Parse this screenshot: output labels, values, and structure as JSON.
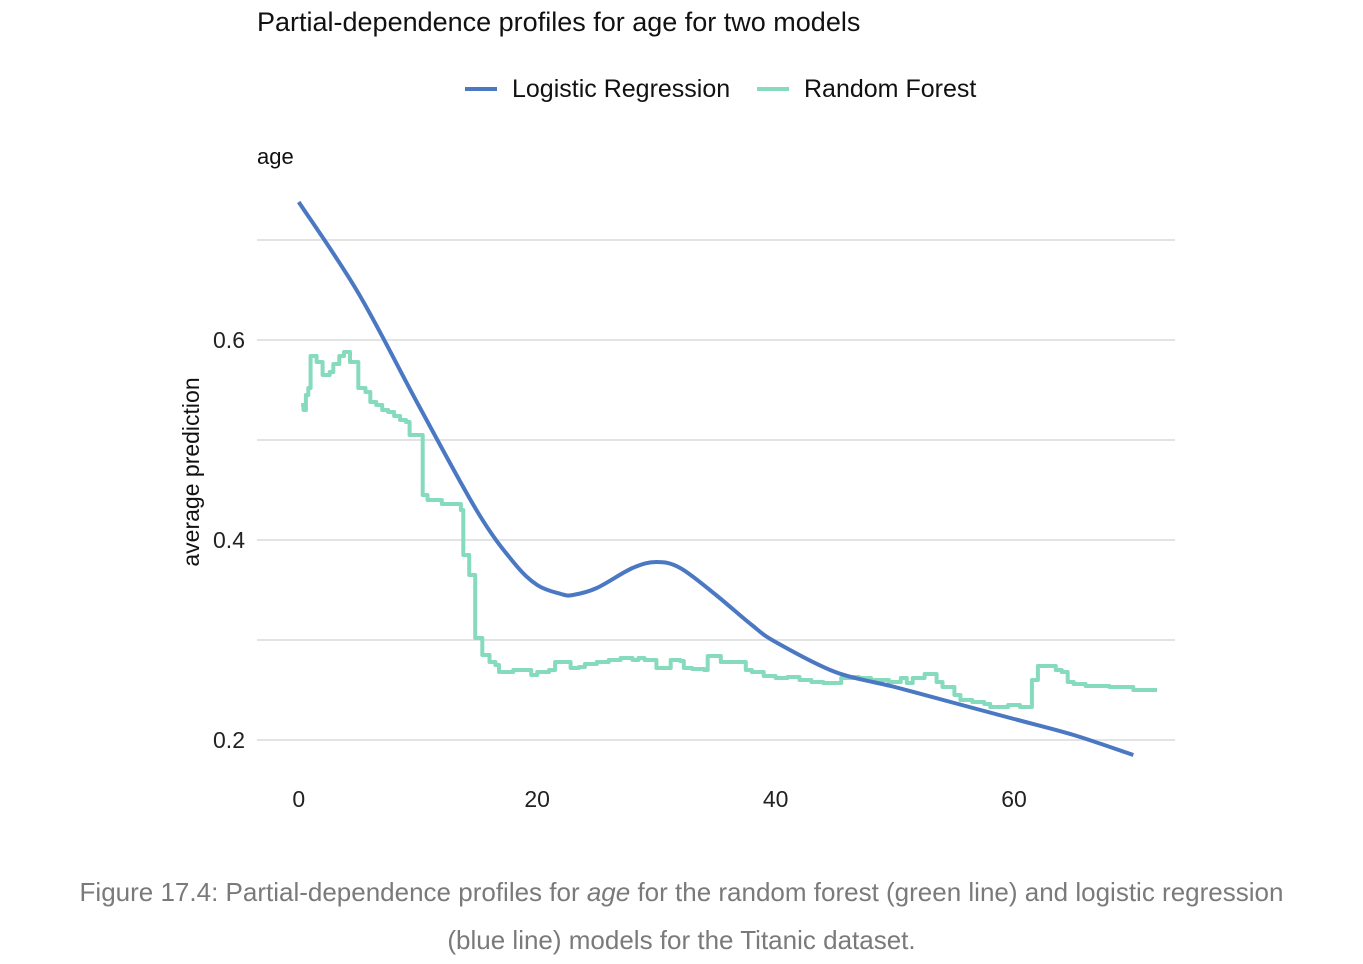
{
  "chart_data": {
    "type": "line",
    "title": "Partial-dependence profiles for age for two models",
    "facet_label": "age",
    "xlabel": "",
    "ylabel": "average prediction",
    "xlim": [
      -3.5,
      73.5
    ],
    "ylim": [
      0.17,
      0.77
    ],
    "x_ticks": [
      0,
      20,
      40,
      60
    ],
    "y_ticks": [
      0.2,
      0.4,
      0.6
    ],
    "y_gridlines": [
      0.2,
      0.3,
      0.4,
      0.5,
      0.6,
      0.7
    ],
    "grid": true,
    "legend_position": "top",
    "series": [
      {
        "name": "Logistic Regression",
        "color": "#4a78c2",
        "points": [
          [
            0,
            0.738
          ],
          [
            5,
            0.647
          ],
          [
            10,
            0.536
          ],
          [
            15,
            0.428
          ],
          [
            18,
            0.378
          ],
          [
            20,
            0.355
          ],
          [
            22,
            0.346
          ],
          [
            23,
            0.345
          ],
          [
            25,
            0.352
          ],
          [
            28,
            0.372
          ],
          [
            30,
            0.378
          ],
          [
            32,
            0.372
          ],
          [
            35,
            0.345
          ],
          [
            38,
            0.315
          ],
          [
            40,
            0.298
          ],
          [
            45,
            0.268
          ],
          [
            50,
            0.253
          ],
          [
            55,
            0.237
          ],
          [
            60,
            0.221
          ],
          [
            65,
            0.205
          ],
          [
            70,
            0.185
          ]
        ]
      },
      {
        "name": "Random Forest",
        "color": "#86dbbd",
        "points": [
          [
            0.2,
            0.535
          ],
          [
            0.4,
            0.53
          ],
          [
            0.6,
            0.545
          ],
          [
            0.8,
            0.552
          ],
          [
            1.0,
            0.584
          ],
          [
            1.5,
            0.578
          ],
          [
            2.0,
            0.565
          ],
          [
            2.6,
            0.568
          ],
          [
            2.9,
            0.576
          ],
          [
            3.4,
            0.584
          ],
          [
            3.8,
            0.588
          ],
          [
            4.3,
            0.578
          ],
          [
            4.8,
            0.578
          ],
          [
            5.0,
            0.552
          ],
          [
            5.6,
            0.548
          ],
          [
            6.0,
            0.538
          ],
          [
            6.5,
            0.535
          ],
          [
            7.0,
            0.53
          ],
          [
            7.5,
            0.528
          ],
          [
            8.0,
            0.524
          ],
          [
            8.5,
            0.52
          ],
          [
            9.0,
            0.518
          ],
          [
            9.3,
            0.505
          ],
          [
            10.3,
            0.505
          ],
          [
            10.4,
            0.445
          ],
          [
            10.8,
            0.44
          ],
          [
            11.5,
            0.44
          ],
          [
            12.0,
            0.436
          ],
          [
            13.2,
            0.436
          ],
          [
            13.6,
            0.43
          ],
          [
            13.8,
            0.385
          ],
          [
            14.3,
            0.365
          ],
          [
            14.6,
            0.365
          ],
          [
            14.8,
            0.302
          ],
          [
            15.2,
            0.302
          ],
          [
            15.4,
            0.285
          ],
          [
            16.0,
            0.278
          ],
          [
            16.5,
            0.275
          ],
          [
            16.8,
            0.268
          ],
          [
            17.5,
            0.268
          ],
          [
            18.0,
            0.27
          ],
          [
            19.0,
            0.27
          ],
          [
            19.5,
            0.265
          ],
          [
            20.0,
            0.268
          ],
          [
            21.0,
            0.27
          ],
          [
            21.5,
            0.278
          ],
          [
            22.5,
            0.278
          ],
          [
            22.8,
            0.272
          ],
          [
            23.5,
            0.273
          ],
          [
            24.0,
            0.276
          ],
          [
            25.0,
            0.278
          ],
          [
            26.0,
            0.28
          ],
          [
            27.0,
            0.282
          ],
          [
            28.0,
            0.28
          ],
          [
            28.5,
            0.282
          ],
          [
            29.0,
            0.28
          ],
          [
            30.0,
            0.272
          ],
          [
            31.0,
            0.272
          ],
          [
            31.2,
            0.28
          ],
          [
            32.0,
            0.279
          ],
          [
            32.3,
            0.272
          ],
          [
            33.0,
            0.271
          ],
          [
            34.0,
            0.27
          ],
          [
            34.3,
            0.284
          ],
          [
            35.0,
            0.284
          ],
          [
            35.4,
            0.278
          ],
          [
            37.0,
            0.278
          ],
          [
            37.5,
            0.27
          ],
          [
            38.0,
            0.268
          ],
          [
            39.0,
            0.264
          ],
          [
            40.0,
            0.262
          ],
          [
            41.0,
            0.263
          ],
          [
            42.0,
            0.26
          ],
          [
            43.0,
            0.258
          ],
          [
            44.0,
            0.257
          ],
          [
            45.0,
            0.257
          ],
          [
            45.5,
            0.262
          ],
          [
            46.5,
            0.263
          ],
          [
            47.0,
            0.262
          ],
          [
            48.0,
            0.26
          ],
          [
            49.0,
            0.26
          ],
          [
            49.5,
            0.258
          ],
          [
            50.5,
            0.262
          ],
          [
            51.0,
            0.257
          ],
          [
            51.5,
            0.262
          ],
          [
            52.0,
            0.262
          ],
          [
            52.5,
            0.266
          ],
          [
            53.0,
            0.266
          ],
          [
            53.5,
            0.258
          ],
          [
            54.0,
            0.253
          ],
          [
            55.0,
            0.245
          ],
          [
            55.5,
            0.24
          ],
          [
            56.5,
            0.238
          ],
          [
            57.5,
            0.236
          ],
          [
            58.0,
            0.233
          ],
          [
            59.0,
            0.233
          ],
          [
            59.5,
            0.235
          ],
          [
            60.0,
            0.235
          ],
          [
            60.5,
            0.233
          ],
          [
            61.3,
            0.233
          ],
          [
            61.5,
            0.26
          ],
          [
            62.0,
            0.274
          ],
          [
            63.0,
            0.274
          ],
          [
            63.5,
            0.27
          ],
          [
            64.0,
            0.268
          ],
          [
            64.5,
            0.258
          ],
          [
            65.0,
            0.256
          ],
          [
            66.0,
            0.254
          ],
          [
            68.0,
            0.253
          ],
          [
            69.0,
            0.253
          ],
          [
            70.0,
            0.25
          ],
          [
            71.0,
            0.25
          ],
          [
            72.0,
            0.25
          ]
        ]
      }
    ]
  },
  "caption": {
    "prefix": "Figure 17.4: Partial-dependence profiles for ",
    "emphasis": "age",
    "line1_suffix": " for the random forest (green line) and logistic regression",
    "line2": "(blue line) models for the Titanic dataset."
  }
}
